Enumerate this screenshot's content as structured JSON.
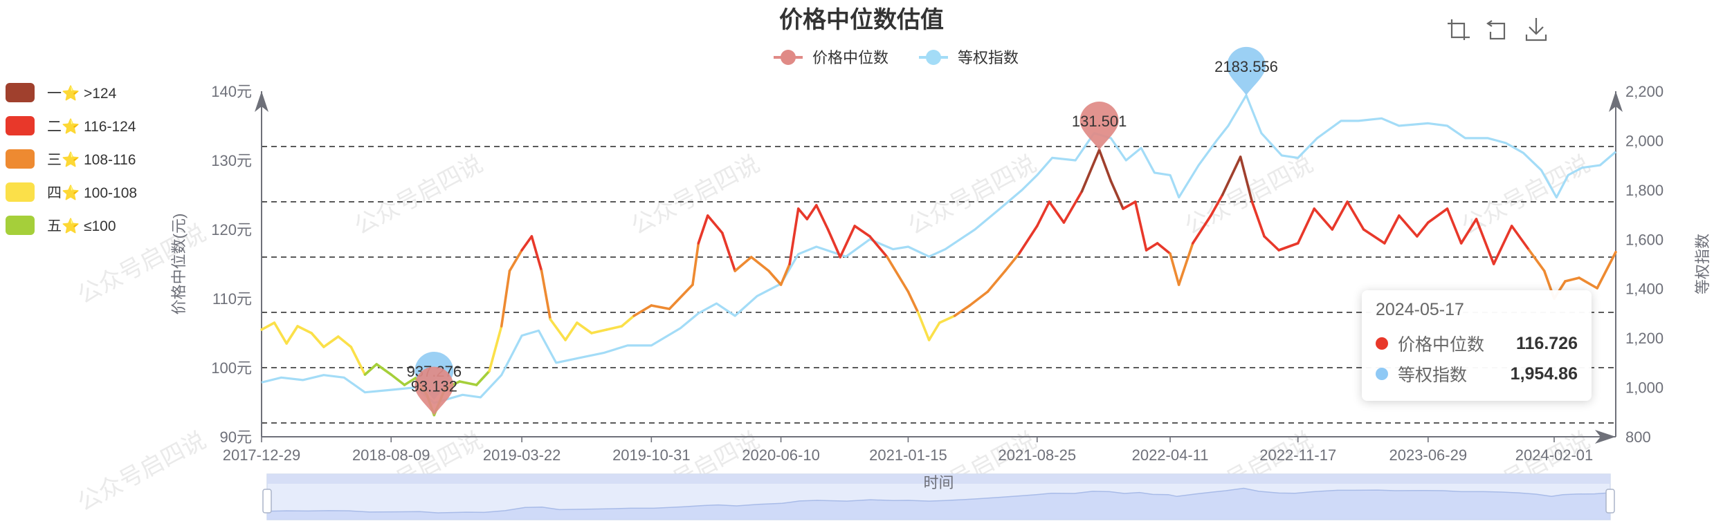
{
  "chart_data": {
    "type": "line",
    "title": "价格中位数估值",
    "legend": {
      "position": "top-center",
      "items": [
        "价格中位数",
        "等权指数"
      ]
    },
    "xlabel": "时间",
    "ylabel_left": "价格中位数(元)",
    "ylabel_right": "等权指数",
    "x_ticks": [
      "2017-12-29",
      "2018-08-09",
      "2019-03-22",
      "2019-10-31",
      "2020-06-10",
      "2021-01-15",
      "2021-08-25",
      "2022-04-11",
      "2022-11-17",
      "2023-06-29",
      "2024-02-01"
    ],
    "y_left_ticks": [
      "90元",
      "100元",
      "110元",
      "120元",
      "130元",
      "140元"
    ],
    "y_left_range": [
      90,
      140
    ],
    "y_right_ticks": [
      "800",
      "1,000",
      "1,200",
      "1,400",
      "1,600",
      "1,800",
      "2,000",
      "2,200"
    ],
    "y_right_range": [
      800,
      2200
    ],
    "grid_lines_left": [
      92,
      100,
      108,
      116,
      124,
      132
    ],
    "x_range": [
      "2017-12-29",
      "2024-05-17"
    ],
    "visual_map": [
      {
        "label": "一⭐  >124",
        "color": "#a0402d",
        "min": 124,
        "max": 999
      },
      {
        "label": "二⭐  116-124",
        "color": "#e8382a",
        "min": 116,
        "max": 124
      },
      {
        "label": "三⭐  108-116",
        "color": "#ee8a31",
        "min": 108,
        "max": 116
      },
      {
        "label": "四⭐  100-108",
        "color": "#fbe049",
        "min": 100,
        "max": 108
      },
      {
        "label": "五⭐  ≤100",
        "color": "#a5cf3a",
        "min": 0,
        "max": 100
      }
    ],
    "series": [
      {
        "name": "价格中位数",
        "color": "#e08a86",
        "axis": "left",
        "points": [
          [
            "2017-12-29",
            105.5
          ],
          [
            "2018-01-20",
            106.5
          ],
          [
            "2018-02-10",
            103.5
          ],
          [
            "2018-03-01",
            106.0
          ],
          [
            "2018-03-25",
            105.0
          ],
          [
            "2018-04-15",
            103.0
          ],
          [
            "2018-05-10",
            104.5
          ],
          [
            "2018-06-01",
            103.0
          ],
          [
            "2018-06-25",
            99.0
          ],
          [
            "2018-07-15",
            100.5
          ],
          [
            "2018-08-09",
            99.0
          ],
          [
            "2018-09-01",
            97.5
          ],
          [
            "2018-09-20",
            98.5
          ],
          [
            "2018-10-10",
            96.0
          ],
          [
            "2018-10-22",
            93.132
          ],
          [
            "2018-11-10",
            97.0
          ],
          [
            "2018-12-05",
            98.0
          ],
          [
            "2019-01-03",
            97.5
          ],
          [
            "2019-01-25",
            99.5
          ],
          [
            "2019-02-15",
            106.0
          ],
          [
            "2019-03-01",
            114.0
          ],
          [
            "2019-03-22",
            117.0
          ],
          [
            "2019-04-08",
            119.0
          ],
          [
            "2019-04-25",
            114.0
          ],
          [
            "2019-05-10",
            107.0
          ],
          [
            "2019-06-05",
            104.0
          ],
          [
            "2019-06-25",
            106.5
          ],
          [
            "2019-07-20",
            105.0
          ],
          [
            "2019-08-15",
            105.5
          ],
          [
            "2019-09-10",
            106.0
          ],
          [
            "2019-10-01",
            107.5
          ],
          [
            "2019-10-31",
            109.0
          ],
          [
            "2019-12-01",
            108.5
          ],
          [
            "2020-01-10",
            112.0
          ],
          [
            "2020-01-20",
            118.0
          ],
          [
            "2020-02-05",
            122.0
          ],
          [
            "2020-03-01",
            119.5
          ],
          [
            "2020-03-23",
            114.0
          ],
          [
            "2020-04-20",
            116.0
          ],
          [
            "2020-05-20",
            114.0
          ],
          [
            "2020-06-10",
            112.0
          ],
          [
            "2020-06-25",
            115.0
          ],
          [
            "2020-07-10",
            123.0
          ],
          [
            "2020-07-25",
            121.5
          ],
          [
            "2020-08-10",
            123.5
          ],
          [
            "2020-08-30",
            120.0
          ],
          [
            "2020-09-20",
            116.0
          ],
          [
            "2020-10-15",
            120.5
          ],
          [
            "2020-11-10",
            119.0
          ],
          [
            "2020-12-10",
            116.0
          ],
          [
            "2021-01-15",
            111.0
          ],
          [
            "2021-02-01",
            108.0
          ],
          [
            "2021-02-20",
            104.0
          ],
          [
            "2021-03-10",
            106.5
          ],
          [
            "2021-04-05",
            107.5
          ],
          [
            "2021-05-01",
            109.0
          ],
          [
            "2021-06-01",
            111.0
          ],
          [
            "2021-07-01",
            114.0
          ],
          [
            "2021-07-25",
            116.5
          ],
          [
            "2021-08-25",
            120.5
          ],
          [
            "2021-09-15",
            124.0
          ],
          [
            "2021-10-10",
            121.0
          ],
          [
            "2021-11-10",
            125.5
          ],
          [
            "2021-12-10",
            131.501
          ],
          [
            "2021-12-30",
            127.0
          ],
          [
            "2022-01-20",
            123.0
          ],
          [
            "2022-02-10",
            124.0
          ],
          [
            "2022-03-01",
            117.0
          ],
          [
            "2022-03-20",
            118.0
          ],
          [
            "2022-04-11",
            116.5
          ],
          [
            "2022-04-26",
            112.0
          ],
          [
            "2022-05-20",
            118.0
          ],
          [
            "2022-06-20",
            122.0
          ],
          [
            "2022-07-10",
            125.0
          ],
          [
            "2022-08-10",
            130.5
          ],
          [
            "2022-08-30",
            124.0
          ],
          [
            "2022-09-20",
            119.0
          ],
          [
            "2022-10-15",
            117.0
          ],
          [
            "2022-11-17",
            118.0
          ],
          [
            "2022-12-15",
            123.0
          ],
          [
            "2023-01-15",
            120.0
          ],
          [
            "2023-02-10",
            124.0
          ],
          [
            "2023-03-10",
            120.0
          ],
          [
            "2023-04-15",
            118.0
          ],
          [
            "2023-05-10",
            122.0
          ],
          [
            "2023-06-10",
            119.0
          ],
          [
            "2023-06-29",
            121.0
          ],
          [
            "2023-08-01",
            123.0
          ],
          [
            "2023-08-25",
            118.0
          ],
          [
            "2023-09-20",
            121.5
          ],
          [
            "2023-10-20",
            115.0
          ],
          [
            "2023-11-20",
            120.5
          ],
          [
            "2023-12-20",
            117.0
          ],
          [
            "2024-01-15",
            114.0
          ],
          [
            "2024-02-01",
            110.0
          ],
          [
            "2024-02-20",
            112.5
          ],
          [
            "2024-03-15",
            113.0
          ],
          [
            "2024-04-15",
            111.5
          ],
          [
            "2024-05-17",
            116.726
          ]
        ],
        "pin": {
          "label": "131.501",
          "date": "2021-12-10",
          "value": 131.501,
          "color": "#e08a86"
        },
        "pin_min": {
          "label": "93.132",
          "date": "2018-10-22",
          "value": 93.132,
          "color": "#e08a86"
        }
      },
      {
        "name": "等权指数",
        "color": "#a3dcf7",
        "axis": "right",
        "points": [
          [
            "2017-12-29",
            1020
          ],
          [
            "2018-02-01",
            1040
          ],
          [
            "2018-03-10",
            1030
          ],
          [
            "2018-04-15",
            1050
          ],
          [
            "2018-05-20",
            1040
          ],
          [
            "2018-06-25",
            980
          ],
          [
            "2018-08-09",
            990
          ],
          [
            "2018-09-20",
            1000
          ],
          [
            "2018-10-22",
            937.276
          ],
          [
            "2018-12-10",
            970
          ],
          [
            "2019-01-10",
            960
          ],
          [
            "2019-02-15",
            1050
          ],
          [
            "2019-03-22",
            1210
          ],
          [
            "2019-04-20",
            1230
          ],
          [
            "2019-05-20",
            1100
          ],
          [
            "2019-06-30",
            1120
          ],
          [
            "2019-08-10",
            1140
          ],
          [
            "2019-09-20",
            1170
          ],
          [
            "2019-10-31",
            1170
          ],
          [
            "2019-12-20",
            1240
          ],
          [
            "2020-01-20",
            1300
          ],
          [
            "2020-02-20",
            1340
          ],
          [
            "2020-03-23",
            1290
          ],
          [
            "2020-04-30",
            1370
          ],
          [
            "2020-06-10",
            1420
          ],
          [
            "2020-07-10",
            1540
          ],
          [
            "2020-08-10",
            1570
          ],
          [
            "2020-09-30",
            1530
          ],
          [
            "2020-11-10",
            1600
          ],
          [
            "2020-12-20",
            1560
          ],
          [
            "2021-01-15",
            1570
          ],
          [
            "2021-02-20",
            1530
          ],
          [
            "2021-03-20",
            1560
          ],
          [
            "2021-05-10",
            1640
          ],
          [
            "2021-06-20",
            1720
          ],
          [
            "2021-07-30",
            1800
          ],
          [
            "2021-08-25",
            1860
          ],
          [
            "2021-09-20",
            1930
          ],
          [
            "2021-10-30",
            1920
          ],
          [
            "2021-12-01",
            2030
          ],
          [
            "2021-12-30",
            2010
          ],
          [
            "2022-01-25",
            1920
          ],
          [
            "2022-02-20",
            1970
          ],
          [
            "2022-03-15",
            1870
          ],
          [
            "2022-04-11",
            1860
          ],
          [
            "2022-04-26",
            1770
          ],
          [
            "2022-05-30",
            1900
          ],
          [
            "2022-06-30",
            2000
          ],
          [
            "2022-07-20",
            2060
          ],
          [
            "2022-08-20",
            2183.556
          ],
          [
            "2022-09-15",
            2030
          ],
          [
            "2022-10-20",
            1940
          ],
          [
            "2022-11-17",
            1930
          ],
          [
            "2022-12-20",
            2010
          ],
          [
            "2023-01-30",
            2080
          ],
          [
            "2023-03-01",
            2080
          ],
          [
            "2023-04-10",
            2090
          ],
          [
            "2023-05-10",
            2060
          ],
          [
            "2023-06-29",
            2070
          ],
          [
            "2023-08-01",
            2060
          ],
          [
            "2023-09-01",
            2010
          ],
          [
            "2023-10-10",
            2010
          ],
          [
            "2023-11-10",
            1990
          ],
          [
            "2023-12-10",
            1950
          ],
          [
            "2024-01-10",
            1880
          ],
          [
            "2024-02-05",
            1770
          ],
          [
            "2024-02-25",
            1860
          ],
          [
            "2024-03-20",
            1890
          ],
          [
            "2024-04-20",
            1900
          ],
          [
            "2024-05-17",
            1954.86
          ]
        ],
        "pin": {
          "label": "2183.556",
          "date": "2022-08-20",
          "value": 2183.556,
          "color": "#92ccf3"
        },
        "pin_min": {
          "label": "937.276",
          "date": "2018-10-22",
          "value": 937.276,
          "color": "#92ccf3"
        }
      }
    ],
    "tooltip": {
      "date": "2024-05-17",
      "rows": [
        {
          "name": "价格中位数",
          "value": "116.726",
          "color": "#e8382a"
        },
        {
          "name": "等权指数",
          "value": "1,954.86",
          "color": "#8fc9f5"
        }
      ]
    },
    "watermark": "公众号启四说",
    "toolbox": [
      "zoom-icon",
      "zoom-reset-icon",
      "download-icon"
    ]
  }
}
